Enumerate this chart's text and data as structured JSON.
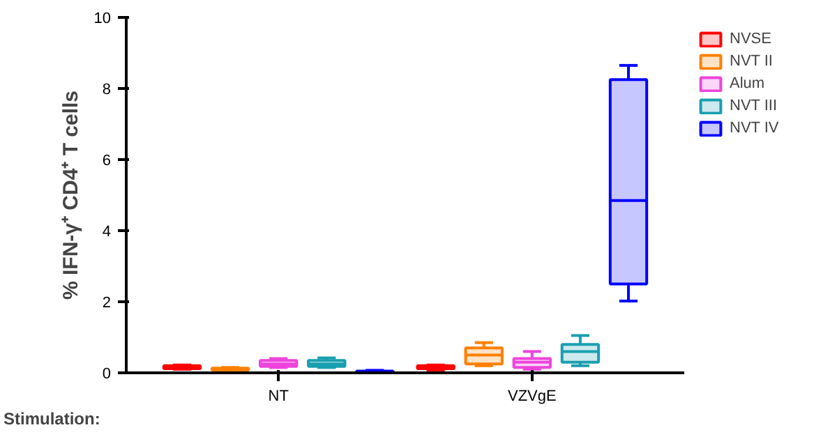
{
  "chart_data": {
    "type": "box",
    "ylabel": "% IFN-γ⁺ CD4⁺ T cells",
    "categories": [
      "NT",
      "VZVgE"
    ],
    "ylim": [
      0,
      10
    ],
    "yticks": [
      0,
      2,
      4,
      6,
      8,
      10
    ],
    "grid": false,
    "legend": "top right",
    "annotations": [
      "Stimulation:"
    ],
    "series": [
      {
        "name": "NVSE",
        "color": "#ff0000",
        "boxes": [
          {
            "low": 0.1,
            "q1": 0.12,
            "median": 0.15,
            "q3": 0.2,
            "high": 0.22
          },
          {
            "low": 0.08,
            "q1": 0.12,
            "median": 0.15,
            "q3": 0.2,
            "high": 0.22
          }
        ]
      },
      {
        "name": "NVT II",
        "color": "#ff8000",
        "boxes": [
          {
            "low": 0.05,
            "q1": 0.08,
            "median": 0.1,
            "q3": 0.13,
            "high": 0.15
          },
          {
            "low": 0.2,
            "q1": 0.25,
            "median": 0.5,
            "q3": 0.7,
            "high": 0.85
          }
        ]
      },
      {
        "name": "Alum",
        "color": "#ee44dd",
        "boxes": [
          {
            "low": 0.15,
            "q1": 0.18,
            "median": 0.25,
            "q3": 0.35,
            "high": 0.4
          },
          {
            "low": 0.1,
            "q1": 0.15,
            "median": 0.3,
            "q3": 0.4,
            "high": 0.6
          }
        ]
      },
      {
        "name": "NVT III",
        "color": "#1a9fb0",
        "boxes": [
          {
            "low": 0.15,
            "q1": 0.18,
            "median": 0.25,
            "q3": 0.35,
            "high": 0.42
          },
          {
            "low": 0.2,
            "q1": 0.3,
            "median": 0.6,
            "q3": 0.8,
            "high": 1.05
          }
        ]
      },
      {
        "name": "NVT IV",
        "color": "#0000ff",
        "boxes": [
          {
            "low": 0.0,
            "q1": 0.02,
            "median": 0.03,
            "q3": 0.05,
            "high": 0.07
          },
          {
            "low": 2.02,
            "q1": 2.5,
            "median": 4.85,
            "q3": 8.25,
            "high": 8.65
          }
        ]
      }
    ]
  }
}
